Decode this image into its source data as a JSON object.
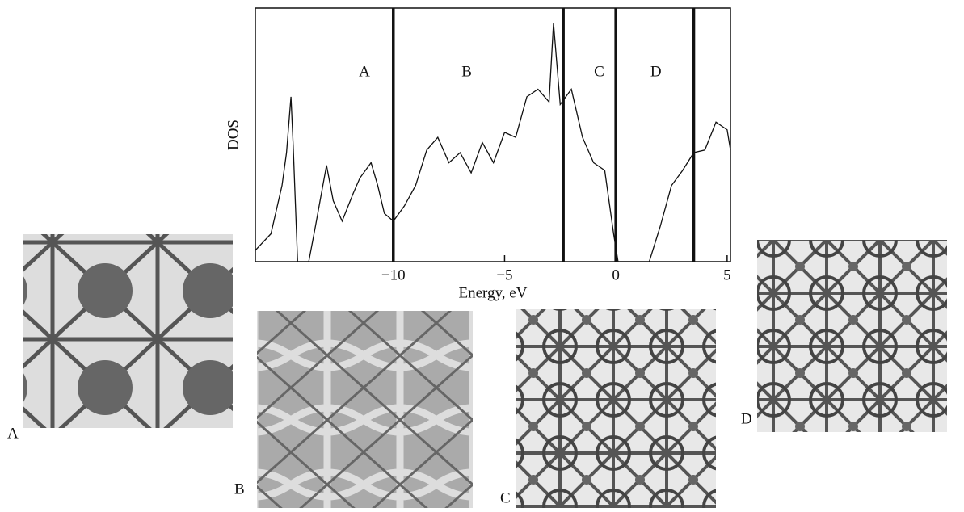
{
  "chart_data": {
    "type": "line",
    "ylabel": "DOS",
    "xlabel": "Energy, eV",
    "xlim": [
      -16.2,
      5.15
    ],
    "ylim": [
      0,
      100
    ],
    "xticks": [
      {
        "value": -10,
        "label": "−10"
      },
      {
        "value": -5,
        "label": "−5"
      },
      0,
      5
    ],
    "x": [
      -16.2,
      -15.5,
      -15.0,
      -14.8,
      -14.6,
      -14.5,
      -14.3,
      -13.8,
      -13.5,
      -13.0,
      -12.7,
      -12.3,
      -11.8,
      -11.5,
      -11.0,
      -10.7,
      -10.4,
      -10.0,
      -9.5,
      -9.0,
      -8.5,
      -8.0,
      -7.5,
      -7.0,
      -6.5,
      -6.0,
      -5.5,
      -5.0,
      -4.5,
      -4.0,
      -3.5,
      -3.0,
      -2.8,
      -2.5,
      -2.0,
      -1.5,
      -1.0,
      -0.5,
      -0.1,
      0.1,
      1.5,
      2.0,
      2.5,
      3.0,
      3.5,
      4.0,
      4.5,
      5.0,
      5.15
    ],
    "series": [
      {
        "color": "#111111",
        "values": [
          4.5,
          11,
          30,
          43,
          65,
          46,
          0,
          0,
          14,
          38,
          24,
          16,
          27,
          33,
          39,
          30,
          19,
          16,
          22,
          30,
          44,
          49,
          39,
          43,
          35,
          47,
          39,
          51,
          49,
          65,
          68,
          63,
          94,
          62,
          68,
          49,
          39,
          36,
          11,
          0,
          0,
          14,
          30,
          36,
          43,
          44,
          55,
          52,
          44
        ]
      }
    ],
    "regions": [
      {
        "label": "A",
        "x": -11.3
      },
      {
        "label": "B",
        "x": -6.7
      },
      {
        "label": "C",
        "x": -0.75
      },
      {
        "label": "D",
        "x": 1.8
      }
    ],
    "boundaries": [
      -10,
      -2.36,
      0,
      3.5
    ]
  },
  "panels": [
    {
      "label": "A"
    },
    {
      "label": "B"
    },
    {
      "label": "C"
    },
    {
      "label": "D"
    }
  ]
}
